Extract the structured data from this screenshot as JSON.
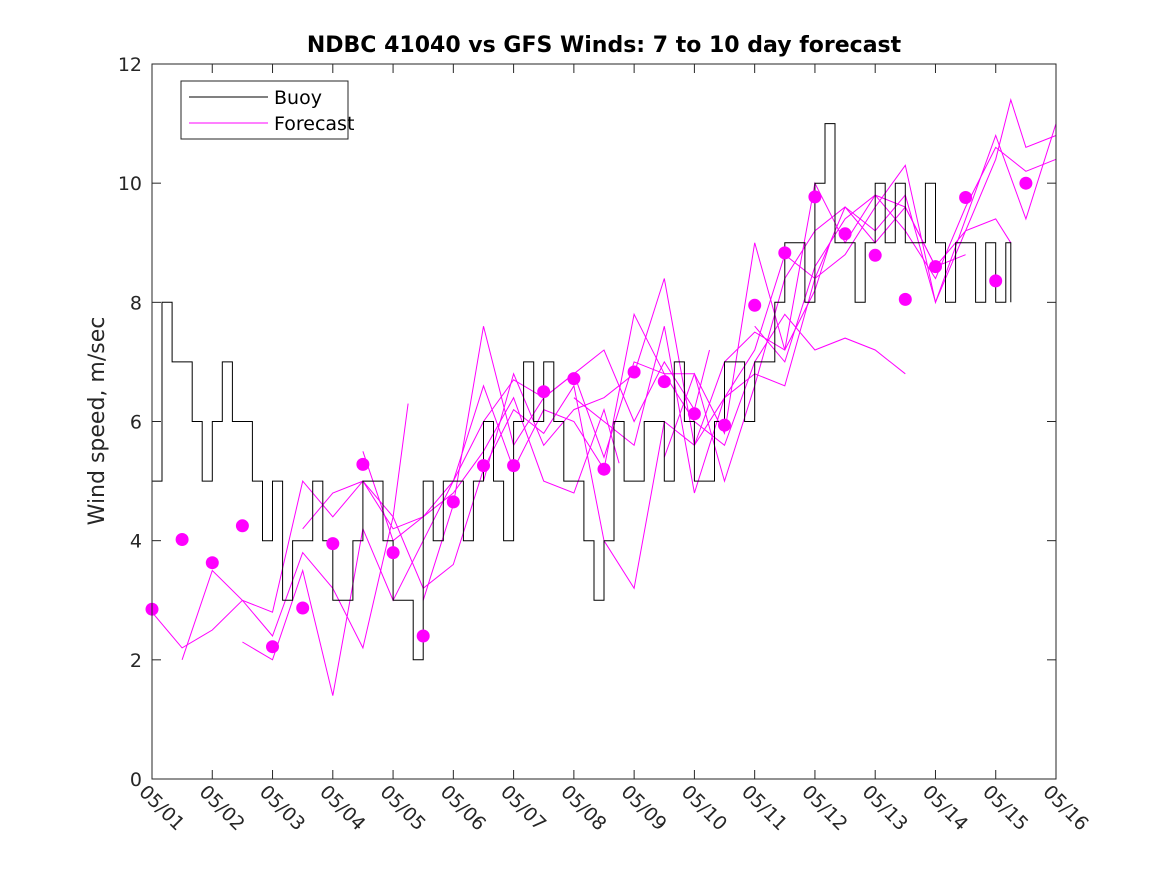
{
  "chart_data": {
    "type": "line",
    "title": "NDBC 41040 vs GFS Winds: 7 to 10 day forecast",
    "xlabel": "",
    "ylabel": "Wind speed, m/sec",
    "xlim": [
      "05/01 00:00",
      "05/16 00:00"
    ],
    "ylim": [
      0,
      12
    ],
    "x_ticks": [
      "05/01",
      "05/02",
      "05/03",
      "05/04",
      "05/05",
      "05/06",
      "05/07",
      "05/08",
      "05/09",
      "05/10",
      "05/11",
      "05/12",
      "05/13",
      "05/14",
      "05/15",
      "05/16"
    ],
    "y_ticks": [
      0,
      2,
      4,
      6,
      8,
      10,
      12
    ],
    "grid": false,
    "legend": {
      "placement": "top-left",
      "entries": [
        "Buoy",
        "Forecast"
      ]
    },
    "colors": {
      "buoy": "#000000",
      "forecast": "#ff00ff",
      "markers": "#ff00ff"
    },
    "buoy": {
      "name": "Buoy",
      "x": [
        "05/01 00:00",
        "05/01 04:00",
        "05/01 08:00",
        "05/01 12:00",
        "05/01 16:00",
        "05/01 20:00",
        "05/02 00:00",
        "05/02 04:00",
        "05/02 08:00",
        "05/02 12:00",
        "05/02 16:00",
        "05/02 20:00",
        "05/03 00:00",
        "05/03 04:00",
        "05/03 08:00",
        "05/03 12:00",
        "05/03 16:00",
        "05/03 20:00",
        "05/04 00:00",
        "05/04 04:00",
        "05/04 08:00",
        "05/04 12:00",
        "05/04 16:00",
        "05/04 20:00",
        "05/05 00:00",
        "05/05 04:00",
        "05/05 08:00",
        "05/05 12:00",
        "05/05 16:00",
        "05/05 20:00",
        "05/06 00:00",
        "05/06 04:00",
        "05/06 08:00",
        "05/06 12:00",
        "05/06 16:00",
        "05/06 20:00",
        "05/07 00:00",
        "05/07 04:00",
        "05/07 08:00",
        "05/07 12:00",
        "05/07 16:00",
        "05/07 20:00",
        "05/08 00:00",
        "05/08 04:00",
        "05/08 08:00",
        "05/08 12:00",
        "05/08 16:00",
        "05/08 20:00",
        "05/09 00:00",
        "05/09 04:00",
        "05/09 08:00",
        "05/09 12:00",
        "05/09 16:00",
        "05/09 20:00",
        "05/10 00:00",
        "05/10 04:00",
        "05/10 08:00",
        "05/10 12:00",
        "05/10 16:00",
        "05/10 20:00",
        "05/11 00:00",
        "05/11 04:00",
        "05/11 08:00",
        "05/11 12:00",
        "05/11 16:00",
        "05/11 20:00",
        "05/12 00:00",
        "05/12 04:00",
        "05/12 08:00",
        "05/12 12:00",
        "05/12 16:00",
        "05/12 20:00",
        "05/13 00:00",
        "05/13 04:00",
        "05/13 08:00",
        "05/13 12:00",
        "05/13 16:00",
        "05/13 20:00",
        "05/14 00:00",
        "05/14 04:00",
        "05/14 08:00",
        "05/14 12:00",
        "05/14 16:00",
        "05/14 20:00",
        "05/15 00:00",
        "05/15 04:00",
        "05/15 06:00"
      ],
      "values": [
        5,
        8,
        7,
        7,
        6,
        5,
        6,
        7,
        6,
        6,
        5,
        4,
        5,
        3,
        4,
        4,
        5,
        4,
        3,
        3,
        4,
        5,
        5,
        4,
        3,
        3,
        2,
        5,
        4,
        5,
        5,
        4,
        5,
        6,
        5,
        4,
        6,
        7,
        6,
        7,
        6,
        5,
        5,
        4,
        3,
        4,
        6,
        5,
        5,
        6,
        6,
        5,
        7,
        6,
        5,
        5,
        6,
        7,
        7,
        6,
        7,
        7,
        8,
        9,
        9,
        8,
        10,
        11,
        9,
        9,
        8,
        9,
        10,
        9,
        10,
        9,
        9,
        10,
        9,
        8,
        9,
        9,
        8,
        9,
        8,
        9,
        8
      ]
    },
    "forecast_lines": [
      {
        "x": [
          "05/01 00:00",
          "05/01 12:00",
          "05/02 00:00",
          "05/02 12:00",
          "05/03 00:00",
          "05/03 12:00",
          "05/04 00:00",
          "05/04 12:00",
          "05/05 00:00",
          "05/05 06:00"
        ],
        "values": [
          2.8,
          2.2,
          2.5,
          3.0,
          2.4,
          3.8,
          3.2,
          2.2,
          4.4,
          6.3
        ]
      },
      {
        "x": [
          "05/01 12:00",
          "05/02 00:00",
          "05/02 12:00",
          "05/03 00:00",
          "05/03 12:00",
          "05/04 00:00",
          "05/04 12:00",
          "05/05 00:00",
          "05/05 12:00",
          "05/06 00:00",
          "05/06 12:00",
          "05/07 00:00",
          "05/07 12:00",
          "05/08 00:00",
          "05/08 12:00",
          "05/08 18:00"
        ],
        "values": [
          2.0,
          3.5,
          3.0,
          2.8,
          5.0,
          4.4,
          5.0,
          4.2,
          4.4,
          4.8,
          5.5,
          6.4,
          5.0,
          4.8,
          6.2,
          5.3
        ]
      },
      {
        "x": [
          "05/02 12:00",
          "05/03 00:00",
          "05/03 12:00",
          "05/04 00:00",
          "05/04 12:00",
          "05/05 00:00",
          "05/05 12:00",
          "05/06 00:00",
          "05/06 12:00",
          "05/07 00:00",
          "05/07 12:00",
          "05/08 00:00",
          "05/08 12:00",
          "05/09 00:00",
          "05/09 12:00",
          "05/10 00:00",
          "05/10 06:00"
        ],
        "values": [
          2.3,
          2.0,
          3.5,
          1.4,
          4.2,
          3.0,
          4.0,
          5.0,
          6.0,
          6.7,
          6.4,
          6.8,
          7.2,
          6.0,
          7.0,
          6.2,
          7.2
        ]
      },
      {
        "x": [
          "05/03 12:00",
          "05/04 00:00",
          "05/04 12:00",
          "05/05 00:00",
          "05/05 12:00",
          "05/06 00:00",
          "05/06 12:00",
          "05/07 00:00",
          "05/07 12:00",
          "05/08 00:00",
          "05/08 12:00",
          "05/09 00:00",
          "05/09 12:00",
          "05/10 00:00",
          "05/10 12:00",
          "05/11 00:00",
          "05/11 12:00",
          "05/12 00:00",
          "05/12 06:00"
        ],
        "values": [
          4.2,
          4.8,
          5.0,
          4.4,
          3.2,
          3.6,
          5.2,
          6.2,
          5.8,
          6.6,
          4.0,
          3.2,
          6.0,
          5.6,
          7.0,
          7.5,
          7.2,
          8.2,
          9.0
        ]
      },
      {
        "x": [
          "05/04 12:00",
          "05/05 00:00",
          "05/05 12:00",
          "05/06 00:00",
          "05/06 12:00",
          "05/07 00:00",
          "05/07 12:00",
          "05/08 00:00",
          "05/08 12:00",
          "05/09 00:00",
          "05/09 12:00",
          "05/10 00:00",
          "05/10 12:00",
          "05/11 00:00",
          "05/11 12:00",
          "05/12 00:00",
          "05/12 12:00",
          "05/13 00:00",
          "05/13 12:00"
        ],
        "values": [
          5.5,
          4.0,
          4.4,
          5.0,
          6.6,
          5.2,
          6.2,
          6.0,
          5.2,
          7.8,
          6.8,
          6.0,
          5.6,
          7.0,
          7.8,
          7.2,
          7.4,
          7.2,
          6.8
        ]
      },
      {
        "x": [
          "05/05 12:00",
          "05/06 00:00",
          "05/06 12:00",
          "05/07 00:00",
          "05/07 12:00",
          "05/08 00:00",
          "05/08 12:00",
          "05/09 00:00",
          "05/09 12:00",
          "05/10 00:00",
          "05/10 12:00",
          "05/11 00:00",
          "05/11 12:00",
          "05/12 00:00",
          "05/12 12:00",
          "05/13 00:00",
          "05/13 12:00",
          "05/14 00:00",
          "05/14 12:00"
        ],
        "values": [
          3.0,
          4.6,
          7.6,
          5.6,
          6.4,
          6.8,
          5.4,
          7.0,
          6.8,
          6.8,
          5.0,
          6.6,
          8.4,
          9.2,
          9.6,
          9.0,
          9.6,
          8.6,
          8.8
        ]
      },
      {
        "x": [
          "05/06 12:00",
          "05/07 00:00",
          "05/07 12:00",
          "05/08 00:00",
          "05/08 12:00",
          "05/09 00:00",
          "05/09 12:00",
          "05/10 00:00",
          "05/10 12:00",
          "05/11 00:00",
          "05/11 12:00",
          "05/12 00:00",
          "05/12 12:00",
          "05/13 00:00",
          "05/13 12:00",
          "05/14 00:00",
          "05/14 12:00",
          "05/15 00:00",
          "05/15 06:00"
        ],
        "values": [
          5.0,
          6.8,
          5.6,
          6.2,
          6.4,
          6.8,
          8.4,
          5.6,
          6.4,
          7.2,
          8.8,
          8.4,
          9.6,
          9.2,
          9.8,
          8.0,
          9.2,
          9.4,
          9.0
        ]
      },
      {
        "x": [
          "05/08 00:00",
          "05/08 12:00",
          "05/09 00:00",
          "05/09 12:00",
          "05/10 00:00",
          "05/10 12:00",
          "05/11 00:00",
          "05/11 12:00",
          "05/12 00:00",
          "05/12 12:00",
          "05/13 00:00",
          "05/13 12:00",
          "05/14 00:00",
          "05/14 12:00",
          "05/15 00:00",
          "05/15 12:00",
          "05/16 00:00"
        ],
        "values": [
          6.4,
          6.0,
          5.6,
          7.6,
          4.8,
          6.4,
          6.8,
          6.6,
          8.4,
          8.8,
          9.6,
          10.3,
          8.0,
          9.4,
          10.8,
          9.4,
          11.0
        ]
      },
      {
        "x": [
          "05/09 12:00",
          "05/10 00:00",
          "05/10 12:00",
          "05/11 00:00",
          "05/11 12:00",
          "05/12 00:00",
          "05/12 12:00",
          "05/13 00:00",
          "05/13 12:00",
          "05/14 00:00",
          "05/14 12:00",
          "05/15 00:00",
          "05/15 12:00",
          "05/16 00:00"
        ],
        "values": [
          5.4,
          6.8,
          5.8,
          9.0,
          7.2,
          10.0,
          9.0,
          9.8,
          9.2,
          8.4,
          9.6,
          10.6,
          10.2,
          10.4
        ]
      },
      {
        "x": [
          "05/11 00:00",
          "05/11 12:00",
          "05/12 00:00",
          "05/12 12:00",
          "05/13 00:00",
          "05/13 12:00",
          "05/14 00:00",
          "05/14 12:00",
          "05/15 00:00",
          "05/15 06:00",
          "05/15 12:00",
          "05/16 00:00"
        ],
        "values": [
          7.6,
          7.0,
          8.6,
          9.4,
          9.8,
          9.6,
          8.6,
          9.2,
          10.4,
          11.4,
          10.6,
          10.8
        ]
      }
    ],
    "forecast_markers": {
      "name": "Forecast",
      "x": [
        "05/01 00:00",
        "05/01 12:00",
        "05/02 00:00",
        "05/02 12:00",
        "05/03 00:00",
        "05/03 12:00",
        "05/04 00:00",
        "05/04 12:00",
        "05/05 00:00",
        "05/05 12:00",
        "05/06 00:00",
        "05/06 12:00",
        "05/07 00:00",
        "05/07 12:00",
        "05/08 00:00",
        "05/08 12:00",
        "05/09 00:00",
        "05/09 12:00",
        "05/10 00:00",
        "05/10 12:00",
        "05/11 00:00",
        "05/11 12:00",
        "05/12 00:00",
        "05/12 12:00",
        "05/13 00:00",
        "05/13 12:00",
        "05/14 00:00",
        "05/14 12:00",
        "05/15 00:00",
        "05/15 12:00"
      ],
      "values": [
        2.85,
        4.02,
        3.63,
        4.25,
        2.22,
        2.87,
        3.95,
        5.28,
        3.8,
        2.4,
        4.65,
        5.26,
        5.26,
        6.5,
        6.72,
        5.2,
        6.83,
        6.67,
        6.13,
        5.94,
        7.95,
        8.83,
        9.77,
        9.15,
        8.79,
        8.05,
        8.6,
        9.76,
        8.36,
        10.0
      ]
    }
  }
}
